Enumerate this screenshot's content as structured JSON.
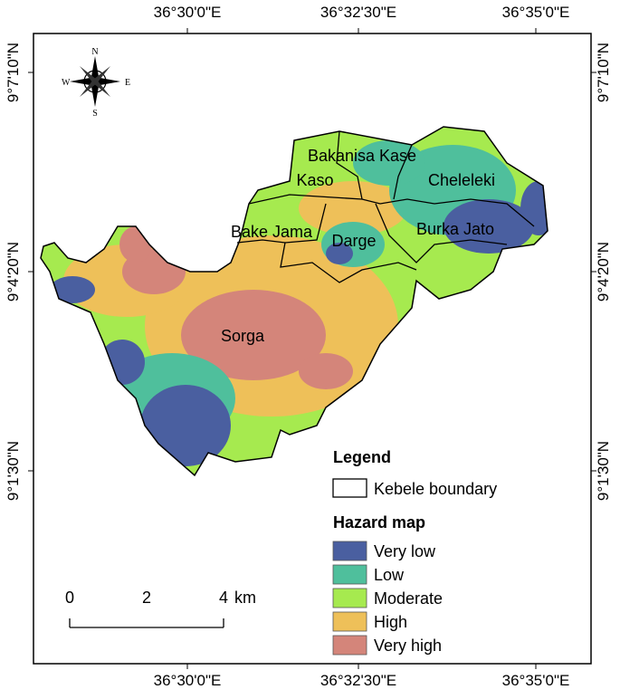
{
  "coordinates": {
    "top": [
      "36°30'0\"E",
      "36°32'30\"E",
      "36°35'0\"E"
    ],
    "bottom": [
      "36°30'0\"E",
      "36°32'30\"E",
      "36°35'0\"E"
    ],
    "left": [
      "9°7'10\"N",
      "9°4'20\"N",
      "9°1'30\"N"
    ],
    "right": [
      "9°7'10\"N",
      "9°4'20\"N",
      "9°1'30\"N"
    ]
  },
  "compass": {
    "north": "N",
    "east": "E",
    "south": "S",
    "west": "W"
  },
  "kebeles": [
    "Bakanisa Kase",
    "Kaso",
    "Cheleleki",
    "Bake Jama",
    "Darge",
    "Burka Jato",
    "Sorga"
  ],
  "legend": {
    "title": "Legend",
    "boundary": "Kebele boundary",
    "hazard_title": "Hazard map",
    "classes": [
      {
        "label": "Very low",
        "color": "#4a5fa0"
      },
      {
        "label": "Low",
        "color": "#4fbf9c"
      },
      {
        "label": "Moderate",
        "color": "#a6ea4f"
      },
      {
        "label": "High",
        "color": "#eec059"
      },
      {
        "label": "Very high",
        "color": "#d4857a"
      }
    ]
  },
  "scale_bar": {
    "ticks": [
      0,
      2,
      4
    ],
    "unit": "km"
  }
}
